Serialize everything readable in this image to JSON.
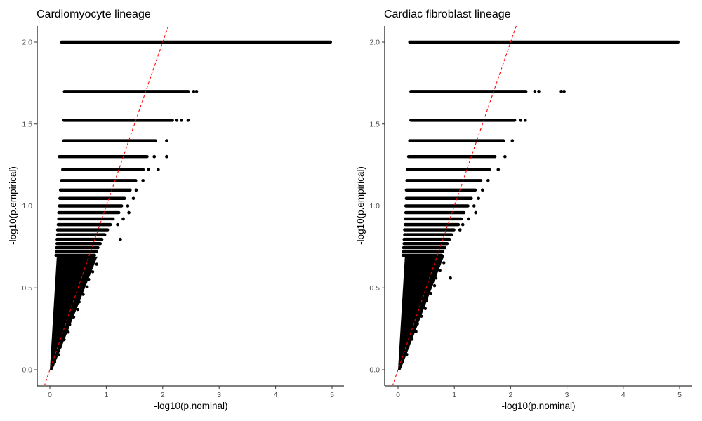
{
  "chart_data": [
    {
      "type": "scatter",
      "title": "Cardiomyocyte lineage",
      "xlabel": "-log10(p.nominal)",
      "ylabel": "-log10(p.empirical)",
      "xlim": [
        -0.2,
        5.2
      ],
      "ylim": [
        -0.07,
        2.1
      ],
      "xticks": [
        0,
        1,
        2,
        3,
        4,
        5
      ],
      "xtick_labels": [
        "0",
        "1",
        "2",
        "3",
        "4",
        "5"
      ],
      "yticks": [
        0.0,
        0.5,
        1.0,
        1.5,
        2.0
      ],
      "ytick_labels": [
        "0.0",
        "0.5",
        "1.0",
        "1.5",
        "2.0"
      ],
      "grid": false,
      "reference_line": {
        "slope": 1,
        "intercept": 0,
        "color": "#ff0000",
        "style": "dashed"
      },
      "series_style": {
        "color": "#000000",
        "marker": "circle"
      },
      "bands": [
        {
          "y": 2.0,
          "x_min": 0.18,
          "x_max": 5.0,
          "outliers": []
        },
        {
          "y": 1.699,
          "x_min": 0.23,
          "x_max": 2.48,
          "outliers": [
            2.55,
            2.6
          ]
        },
        {
          "y": 1.523,
          "x_min": 0.22,
          "x_max": 2.2,
          "outliers": [
            2.25,
            2.33,
            2.45
          ]
        },
        {
          "y": 1.398,
          "x_min": 0.22,
          "x_max": 1.9,
          "outliers": [
            2.07
          ]
        },
        {
          "y": 1.301,
          "x_min": 0.14,
          "x_max": 1.75,
          "outliers": [
            1.85,
            2.07
          ]
        },
        {
          "y": 1.222,
          "x_min": 0.2,
          "x_max": 1.68,
          "outliers": [
            1.75,
            1.92
          ]
        },
        {
          "y": 1.155,
          "x_min": 0.18,
          "x_max": 1.55,
          "outliers": [
            1.65
          ]
        },
        {
          "y": 1.097,
          "x_min": 0.16,
          "x_max": 1.45,
          "outliers": [
            1.53
          ]
        },
        {
          "y": 1.046,
          "x_min": 0.15,
          "x_max": 1.35,
          "outliers": [
            1.48
          ]
        },
        {
          "y": 1.0,
          "x_min": 0.14,
          "x_max": 1.3,
          "outliers": [
            1.38
          ]
        },
        {
          "y": 0.959,
          "x_min": 0.13,
          "x_max": 1.25,
          "outliers": [
            1.4
          ]
        },
        {
          "y": 0.921,
          "x_min": 0.13,
          "x_max": 1.15,
          "outliers": [
            1.3
          ]
        },
        {
          "y": 0.886,
          "x_min": 0.12,
          "x_max": 1.1,
          "outliers": [
            1.2
          ]
        },
        {
          "y": 0.854,
          "x_min": 0.11,
          "x_max": 1.05,
          "outliers": []
        },
        {
          "y": 0.824,
          "x_min": 0.11,
          "x_max": 1.0,
          "outliers": []
        },
        {
          "y": 0.796,
          "x_min": 0.1,
          "x_max": 0.95,
          "outliers": [
            1.25
          ]
        },
        {
          "y": 0.77,
          "x_min": 0.1,
          "x_max": 0.92,
          "outliers": []
        },
        {
          "y": 0.745,
          "x_min": 0.09,
          "x_max": 0.88,
          "outliers": []
        },
        {
          "y": 0.721,
          "x_min": 0.09,
          "x_max": 0.85,
          "outliers": []
        },
        {
          "y": 0.699,
          "x_min": 0.08,
          "x_max": 0.82,
          "outliers": []
        }
      ],
      "dense_region": {
        "x_start": 0.0,
        "y_top": 0.69,
        "slope_upper": 11.0,
        "slope_lower": 0.82
      }
    },
    {
      "type": "scatter",
      "title": "Cardiac fibroblast lineage",
      "xlabel": "-log10(p.nominal)",
      "ylabel": "-log10(p.empirical)",
      "xlim": [
        -0.2,
        5.2
      ],
      "ylim": [
        -0.07,
        2.1
      ],
      "xticks": [
        0,
        1,
        2,
        3,
        4,
        5
      ],
      "xtick_labels": [
        "0",
        "1",
        "2",
        "3",
        "4",
        "5"
      ],
      "yticks": [
        0.0,
        0.5,
        1.0,
        1.5,
        2.0
      ],
      "ytick_labels": [
        "0.0",
        "0.5",
        "1.0",
        "1.5",
        "2.0"
      ],
      "grid": false,
      "reference_line": {
        "slope": 1,
        "intercept": 0,
        "color": "#ff0000",
        "style": "dashed"
      },
      "series_style": {
        "color": "#000000",
        "marker": "circle"
      },
      "bands": [
        {
          "y": 2.0,
          "x_min": 0.18,
          "x_max": 5.0,
          "outliers": []
        },
        {
          "y": 1.699,
          "x_min": 0.2,
          "x_max": 2.3,
          "outliers": [
            2.43,
            2.5,
            2.9,
            2.95
          ]
        },
        {
          "y": 1.523,
          "x_min": 0.2,
          "x_max": 2.1,
          "outliers": [
            2.18,
            2.26
          ]
        },
        {
          "y": 1.398,
          "x_min": 0.18,
          "x_max": 1.9,
          "outliers": [
            2.03
          ]
        },
        {
          "y": 1.301,
          "x_min": 0.16,
          "x_max": 1.75,
          "outliers": [
            1.9
          ]
        },
        {
          "y": 1.222,
          "x_min": 0.14,
          "x_max": 1.65,
          "outliers": [
            1.78
          ]
        },
        {
          "y": 1.155,
          "x_min": 0.13,
          "x_max": 1.5,
          "outliers": [
            1.6
          ]
        },
        {
          "y": 1.097,
          "x_min": 0.12,
          "x_max": 1.4,
          "outliers": [
            1.5
          ]
        },
        {
          "y": 1.046,
          "x_min": 0.12,
          "x_max": 1.33,
          "outliers": [
            1.43
          ]
        },
        {
          "y": 1.0,
          "x_min": 0.11,
          "x_max": 1.27,
          "outliers": [
            1.35
          ]
        },
        {
          "y": 0.959,
          "x_min": 0.11,
          "x_max": 1.2,
          "outliers": [
            1.38
          ]
        },
        {
          "y": 0.921,
          "x_min": 0.1,
          "x_max": 1.15,
          "outliers": [
            1.25
          ]
        },
        {
          "y": 0.886,
          "x_min": 0.1,
          "x_max": 1.1,
          "outliers": [
            1.15
          ]
        },
        {
          "y": 0.854,
          "x_min": 0.09,
          "x_max": 1.02,
          "outliers": [
            1.1
          ]
        },
        {
          "y": 0.824,
          "x_min": 0.09,
          "x_max": 0.98,
          "outliers": []
        },
        {
          "y": 0.796,
          "x_min": 0.08,
          "x_max": 0.94,
          "outliers": []
        },
        {
          "y": 0.77,
          "x_min": 0.08,
          "x_max": 0.9,
          "outliers": []
        },
        {
          "y": 0.745,
          "x_min": 0.07,
          "x_max": 0.86,
          "outliers": []
        },
        {
          "y": 0.721,
          "x_min": 0.07,
          "x_max": 0.82,
          "outliers": []
        },
        {
          "y": 0.699,
          "x_min": 0.06,
          "x_max": 0.8,
          "outliers": []
        }
      ],
      "dense_region": {
        "x_start": 0.0,
        "y_top": 0.7,
        "slope_upper": 11.0,
        "slope_lower": 0.85
      },
      "extra_points": [
        {
          "x": 0.93,
          "y": 0.56
        }
      ]
    }
  ]
}
